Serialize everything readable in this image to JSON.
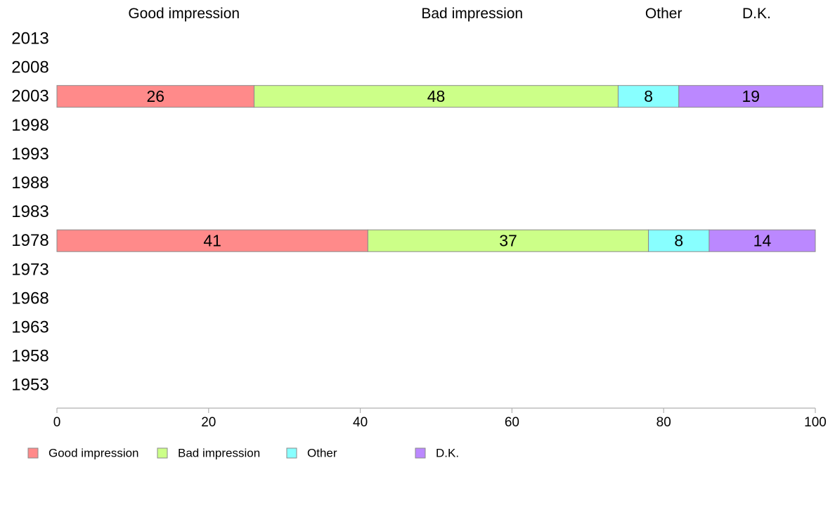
{
  "chart_data": {
    "type": "bar",
    "orientation": "horizontal",
    "stacked": true,
    "categories": [
      "2013",
      "2008",
      "2003",
      "1998",
      "1993",
      "1988",
      "1983",
      "1978",
      "1973",
      "1968",
      "1963",
      "1958",
      "1953"
    ],
    "series": [
      {
        "name": "Good impression",
        "color": "#ff8a8a",
        "values": [
          null,
          null,
          26,
          null,
          null,
          null,
          null,
          41,
          null,
          null,
          null,
          null,
          null
        ]
      },
      {
        "name": "Bad impression",
        "color": "#ccff88",
        "values": [
          null,
          null,
          48,
          null,
          null,
          null,
          null,
          37,
          null,
          null,
          null,
          null,
          null
        ]
      },
      {
        "name": "Other",
        "color": "#88ffff",
        "values": [
          null,
          null,
          8,
          null,
          null,
          null,
          null,
          8,
          null,
          null,
          null,
          null,
          null
        ]
      },
      {
        "name": "D.K.",
        "color": "#bb88ff",
        "values": [
          null,
          null,
          19,
          null,
          null,
          null,
          null,
          14,
          null,
          null,
          null,
          null,
          null
        ]
      }
    ],
    "column_headers": [
      "Good impression",
      "Bad impression",
      "Other",
      "D.K."
    ],
    "xlim": [
      0,
      100
    ],
    "xticks": [
      "0",
      "20",
      "40",
      "60",
      "80",
      "100"
    ],
    "grid": false,
    "legend_position": "bottom-left"
  }
}
